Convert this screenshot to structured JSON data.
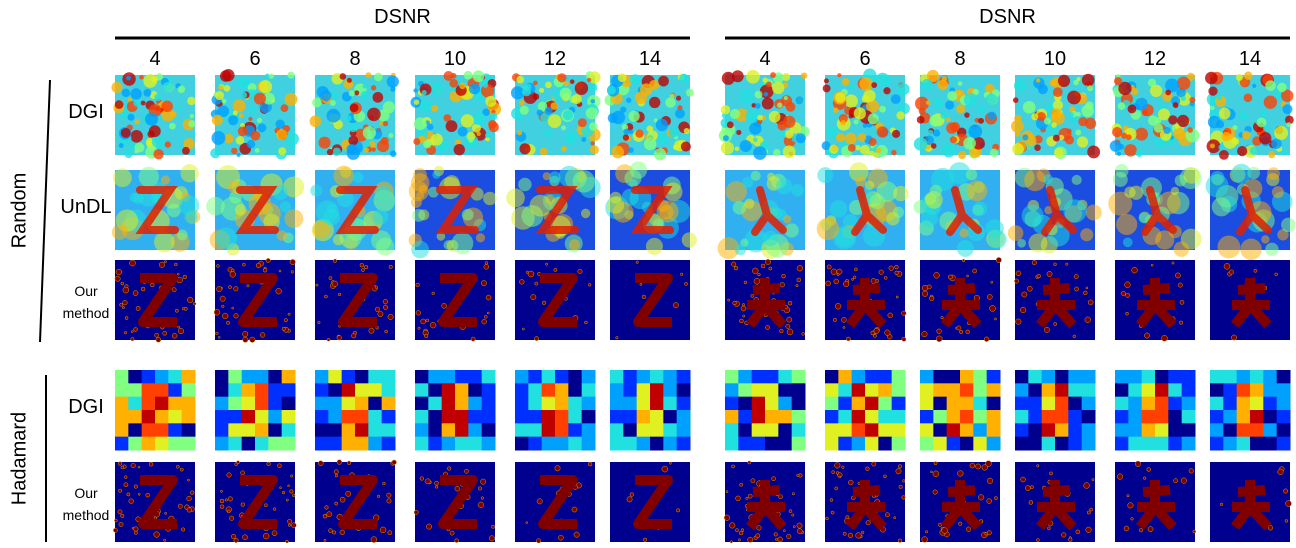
{
  "panels": [
    {
      "header": "DSNR",
      "columns": [
        4,
        6,
        8,
        10,
        12,
        14
      ]
    },
    {
      "header": "DSNR",
      "columns": [
        4,
        6,
        8,
        10,
        12,
        14
      ]
    }
  ],
  "groups": [
    {
      "label": "Random",
      "rows": [
        "DGI",
        "UnDL",
        "Our method"
      ]
    },
    {
      "label": "Hadamard",
      "rows": [
        "DGI",
        "Our method"
      ]
    }
  ]
}
